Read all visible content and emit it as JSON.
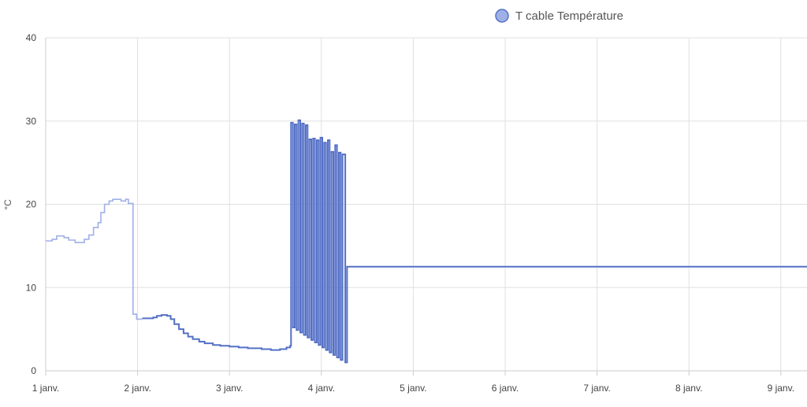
{
  "chart_data": {
    "type": "line",
    "title": "",
    "xlabel": "",
    "ylabel": "°C",
    "ylim": [
      0,
      40
    ],
    "yticks": [
      "0",
      "10",
      "20",
      "30",
      "40"
    ],
    "xticks": [
      "1 janv.",
      "2 janv.",
      "3 janv.",
      "4 janv.",
      "5 janv.",
      "6 janv.",
      "7 janv.",
      "8 janv.",
      "9 janv."
    ],
    "xlim_days": [
      1,
      9.3
    ],
    "grid": true,
    "legend_position": "top",
    "step": true,
    "series": [
      {
        "name": "T cable Température",
        "color": "#5470c6",
        "fill_color": "#9fb0e6",
        "segments": [
          {
            "style": "faded",
            "points": [
              [
                1.0,
                15.6
              ],
              [
                1.07,
                15.8
              ],
              [
                1.12,
                16.2
              ],
              [
                1.2,
                16.0
              ],
              [
                1.25,
                15.7
              ],
              [
                1.32,
                15.4
              ],
              [
                1.42,
                15.8
              ],
              [
                1.47,
                16.3
              ],
              [
                1.52,
                17.2
              ],
              [
                1.57,
                17.8
              ],
              [
                1.6,
                19.0
              ],
              [
                1.64,
                20.0
              ],
              [
                1.69,
                20.4
              ],
              [
                1.73,
                20.6
              ],
              [
                1.82,
                20.4
              ],
              [
                1.87,
                20.6
              ],
              [
                1.9,
                20.1
              ],
              [
                1.95,
                6.8
              ],
              [
                1.99,
                6.2
              ],
              [
                2.05,
                6.2
              ]
            ]
          },
          {
            "style": "solid",
            "points": [
              [
                2.05,
                6.3
              ],
              [
                2.1,
                6.3
              ],
              [
                2.17,
                6.4
              ],
              [
                2.21,
                6.6
              ],
              [
                2.26,
                6.7
              ],
              [
                2.32,
                6.6
              ],
              [
                2.36,
                6.2
              ],
              [
                2.4,
                5.6
              ],
              [
                2.45,
                5.0
              ],
              [
                2.5,
                4.5
              ],
              [
                2.55,
                4.1
              ],
              [
                2.6,
                3.8
              ],
              [
                2.67,
                3.5
              ],
              [
                2.73,
                3.3
              ],
              [
                2.82,
                3.1
              ],
              [
                2.9,
                3.0
              ],
              [
                3.0,
                2.9
              ],
              [
                3.1,
                2.8
              ],
              [
                3.2,
                2.7
              ],
              [
                3.35,
                2.6
              ],
              [
                3.45,
                2.5
              ],
              [
                3.55,
                2.6
              ],
              [
                3.62,
                2.8
              ],
              [
                3.66,
                3.0
              ],
              [
                3.67,
                29.8
              ],
              [
                3.69,
                5.2
              ],
              [
                3.71,
                29.6
              ],
              [
                3.73,
                4.9
              ],
              [
                3.75,
                30.1
              ],
              [
                3.77,
                4.6
              ],
              [
                3.79,
                29.7
              ],
              [
                3.81,
                4.3
              ],
              [
                3.83,
                29.5
              ],
              [
                3.85,
                4.0
              ],
              [
                3.87,
                27.8
              ],
              [
                3.89,
                3.7
              ],
              [
                3.91,
                27.9
              ],
              [
                3.93,
                3.4
              ],
              [
                3.95,
                27.7
              ],
              [
                3.97,
                3.1
              ],
              [
                3.99,
                28.0
              ],
              [
                4.01,
                2.8
              ],
              [
                4.03,
                27.4
              ],
              [
                4.05,
                2.5
              ],
              [
                4.07,
                27.7
              ],
              [
                4.09,
                2.2
              ],
              [
                4.11,
                26.3
              ],
              [
                4.13,
                1.9
              ],
              [
                4.15,
                27.1
              ],
              [
                4.17,
                1.6
              ],
              [
                4.19,
                26.2
              ],
              [
                4.21,
                1.3
              ],
              [
                4.23,
                26.0
              ],
              [
                4.26,
                1.0
              ],
              [
                4.28,
                12.5
              ],
              [
                9.3,
                12.5
              ]
            ]
          }
        ]
      }
    ]
  }
}
